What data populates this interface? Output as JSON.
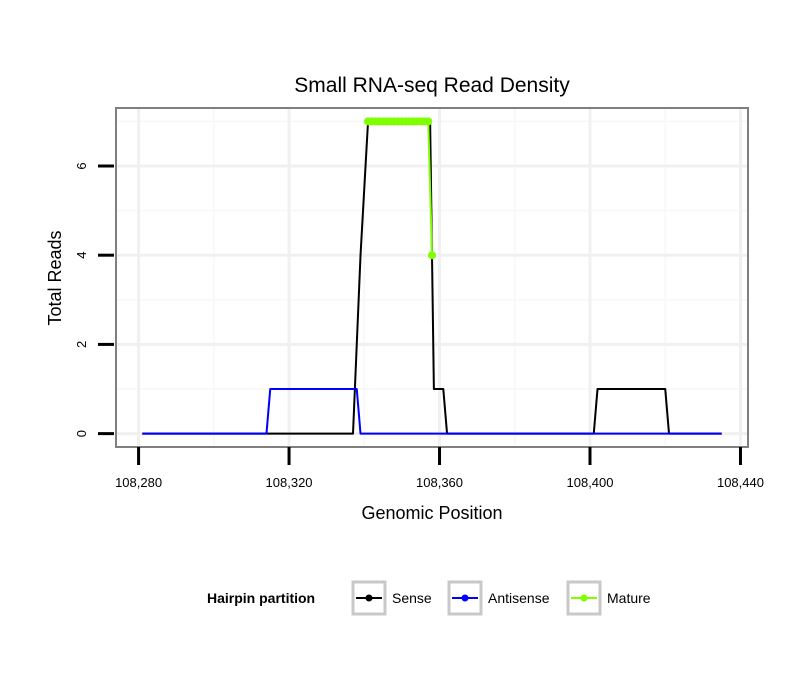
{
  "chart_data": {
    "type": "line",
    "title": "Small RNA-seq Read Density",
    "xlabel": "Genomic Position",
    "ylabel": "Total Reads",
    "xlim": [
      108274,
      108442
    ],
    "ylim": [
      -0.3,
      7.3
    ],
    "x_ticks": [
      108280,
      108320,
      108360,
      108400,
      108440
    ],
    "x_tick_labels": [
      "108,280",
      "108,320",
      "108,360",
      "108,400",
      "108,440"
    ],
    "y_ticks": [
      0,
      2,
      4,
      6
    ],
    "y_tick_labels": [
      "0",
      "2",
      "4",
      "6"
    ],
    "grid": true,
    "series": [
      {
        "name": "Sense",
        "color": "#000000",
        "x": [
          108281,
          108337,
          108338,
          108339,
          108341,
          108341.5,
          108357,
          108357.5,
          108358,
          108358.5,
          108359,
          108359.5,
          108360,
          108361,
          108362,
          108401,
          108402,
          108420,
          108421,
          108435
        ],
        "y": [
          0,
          0,
          2,
          4,
          7,
          7,
          7,
          7,
          4,
          1,
          1,
          1,
          1,
          1,
          0,
          0,
          1,
          1,
          0,
          0
        ]
      },
      {
        "name": "Antisense",
        "color": "#0000ff",
        "x": [
          108281,
          108314,
          108315,
          108338,
          108339,
          108435
        ],
        "y": [
          0,
          0,
          1,
          1,
          0,
          0
        ]
      },
      {
        "name": "Mature",
        "color": "#7fff00",
        "x": [
          108341,
          108342,
          108343,
          108344,
          108345,
          108346,
          108347,
          108348,
          108349,
          108350,
          108351,
          108352,
          108353,
          108354,
          108355,
          108356,
          108357,
          108358
        ],
        "y": [
          7,
          7,
          7,
          7,
          7,
          7,
          7,
          7,
          7,
          7,
          7,
          7,
          7,
          7,
          7,
          7,
          7,
          4
        ]
      }
    ],
    "legend": {
      "title": "Hairpin partition",
      "placement": "bottom",
      "entries": [
        "Sense",
        "Antisense",
        "Mature"
      ]
    }
  }
}
